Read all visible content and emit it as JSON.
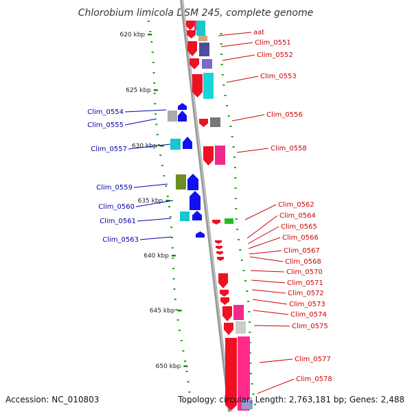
{
  "title": "Chlorobium limicola DSM 245, complete genome",
  "footer": {
    "accession": "Accession: NC_010803",
    "topology": "Topology: circular; Length: 2,763,181 bp; Genes: 2,488"
  },
  "kbp_ticks": [
    "620 kbp",
    "625 kbp",
    "630 kbp",
    "635 kbp",
    "640 kbp",
    "645 kbp",
    "650 kbp"
  ],
  "colors": {
    "forward_label": "#cc0000",
    "reverse_label": "#0000aa",
    "backbone": "#8a8a8a",
    "gc_dots": "#11aa11"
  },
  "left_labels": [
    "Clim_0554",
    "Clim_0555",
    "Clim_0557",
    "Clim_0559",
    "Clim_0560",
    "Clim_0561",
    "Clim_0563"
  ],
  "right_labels": [
    "aat",
    "Clim_0551",
    "Clim_0552",
    "Clim_0553",
    "Clim_0556",
    "Clim_0558",
    "Clim_0562",
    "Clim_0564",
    "Clim_0565",
    "Clim_0566",
    "Clim_0567",
    "Clim_0568",
    "Clim_0570",
    "Clim_0571",
    "Clim_0572",
    "Clim_0573",
    "Clim_0574",
    "Clim_0575",
    "Clim_0577",
    "Clim_0578"
  ]
}
